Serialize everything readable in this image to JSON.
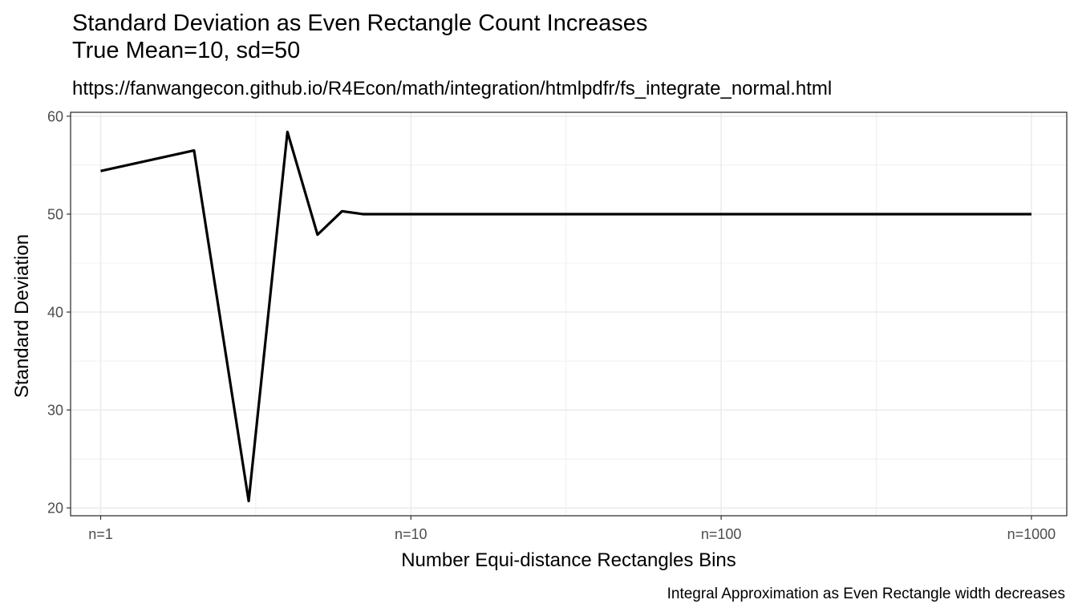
{
  "chart_data": {
    "type": "line",
    "title_line1": "Standard Deviation as Even Rectangle Count Increases",
    "title_line2": "True Mean=10, sd=50",
    "subtitle": "https://fanwangecon.github.io/R4Econ/math/integration/htmlpdfr/fs_integrate_normal.html",
    "caption": "Integral Approximation as Even Rectangle width decreases",
    "xlabel": "Number Equi-distance Rectangles Bins",
    "ylabel": "Standard Deviation",
    "x_scale": "log10",
    "xlim": [
      0.8,
      1300
    ],
    "ylim": [
      19.2,
      60.4
    ],
    "x_ticks": [
      {
        "value": 1,
        "label": "n=1"
      },
      {
        "value": 10,
        "label": "n=10"
      },
      {
        "value": 100,
        "label": "n=100"
      },
      {
        "value": 1000,
        "label": "n=1000"
      }
    ],
    "y_ticks": [
      {
        "value": 20,
        "label": "20"
      },
      {
        "value": 30,
        "label": "30"
      },
      {
        "value": 40,
        "label": "40"
      },
      {
        "value": 50,
        "label": "50"
      },
      {
        "value": 60,
        "label": "60"
      }
    ],
    "grid": true,
    "line_color": "#000000",
    "series": [
      {
        "x": [
          1,
          2,
          3,
          4,
          5,
          6,
          7,
          8,
          9,
          10,
          20,
          50,
          100,
          200,
          500,
          1000
        ],
        "values": [
          54.4,
          56.5,
          20.7,
          58.4,
          47.9,
          50.3,
          50.0,
          50.0,
          50.0,
          50.0,
          50.0,
          50.0,
          50.0,
          50.0,
          50.0,
          50.0
        ]
      }
    ]
  }
}
